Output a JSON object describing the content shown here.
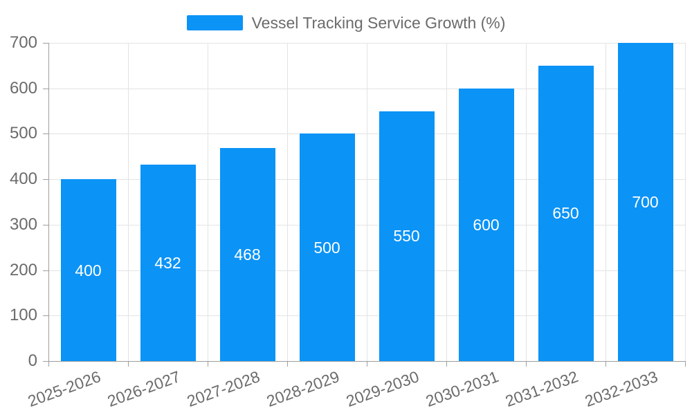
{
  "chart_data": {
    "type": "bar",
    "title": "",
    "legend": "Vessel Tracking Service Growth (%)",
    "legend_position": "top-center",
    "categories": [
      "2025-2026",
      "2026-2027",
      "2027-2028",
      "2028-2029",
      "2029-2030",
      "2030-2031",
      "2031-2032",
      "2032-2033"
    ],
    "values": [
      400,
      432,
      468,
      500,
      550,
      600,
      650,
      700
    ],
    "bar_value_labels": [
      "400",
      "432",
      "468",
      "500",
      "550",
      "600",
      "650",
      "700"
    ],
    "xlabel": "",
    "ylabel": "",
    "ylim": [
      0,
      700
    ],
    "yticks": [
      0,
      100,
      200,
      300,
      400,
      500,
      600,
      700
    ],
    "grid": true,
    "x_label_rotation_deg": -20,
    "colors": {
      "bar": "#0b93f6",
      "bar_label": "#ffffff",
      "axis_text": "#6b6b6b",
      "legend_text": "#6b6b6b",
      "axis_line": "#9e9e9e",
      "gridline": "#e3e3e3",
      "background": "#ffffff"
    }
  }
}
